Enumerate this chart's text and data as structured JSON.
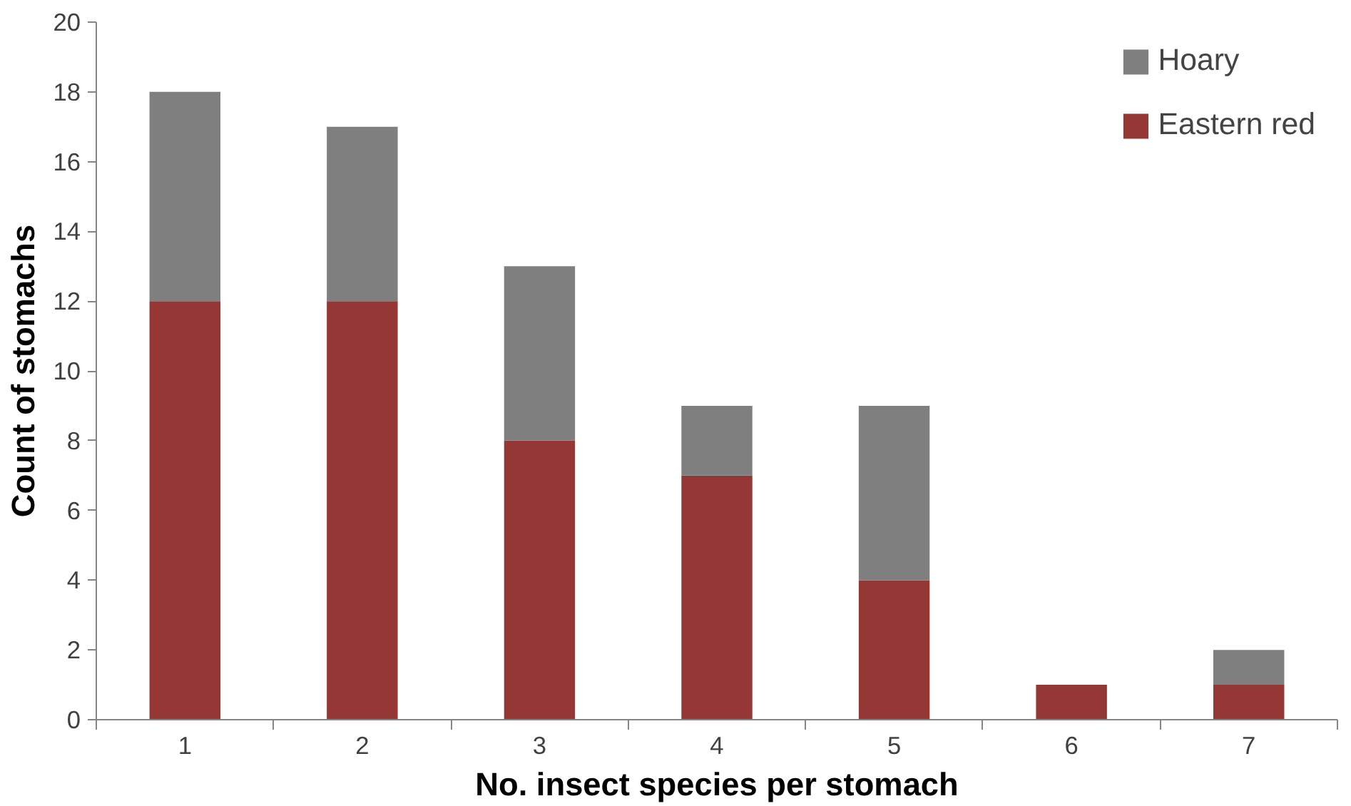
{
  "chart_data": {
    "type": "bar",
    "stacked": true,
    "xlabel": "No. insect species per stomach",
    "ylabel": "Count of stomachs",
    "categories": [
      "1",
      "2",
      "3",
      "4",
      "5",
      "6",
      "7"
    ],
    "series": [
      {
        "name": "Eastern red",
        "color": "#953735",
        "values": [
          12,
          12,
          8,
          7,
          4,
          1,
          1
        ]
      },
      {
        "name": "Hoary",
        "color": "#7f7f7f",
        "values": [
          6,
          5,
          5,
          2,
          5,
          0,
          1
        ]
      }
    ],
    "ylim": [
      0,
      20
    ],
    "yticks": [
      0,
      2,
      4,
      6,
      8,
      10,
      12,
      14,
      16,
      18,
      20
    ],
    "grid": false,
    "legend": "top right"
  }
}
